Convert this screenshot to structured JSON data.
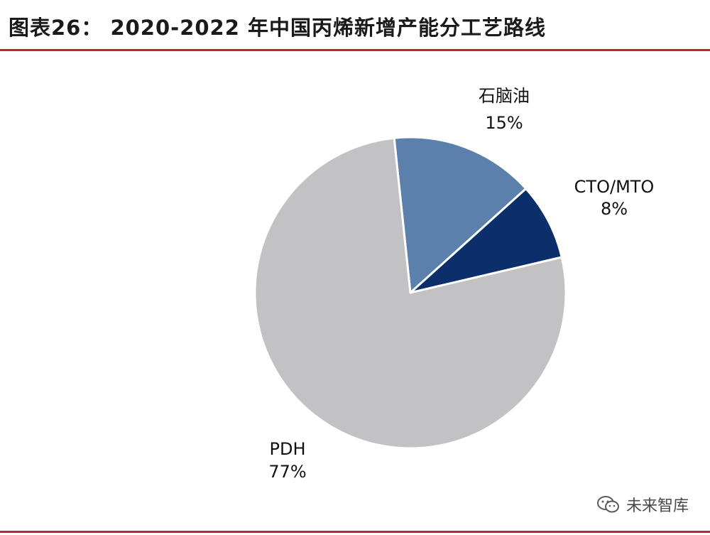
{
  "title": "图表26：   2020-2022 年中国丙烯新增产能分工艺路线",
  "watermark": "未来智库",
  "colors": {
    "accent_rule": "#c0272d"
  },
  "chart_data": {
    "type": "pie",
    "title": "2020-2022 年中国丙烯新增产能分工艺路线",
    "slices": [
      {
        "label": "石脑油",
        "value": 15,
        "display": "15%",
        "color": "#5b80ab"
      },
      {
        "label": "CTO/MTO",
        "value": 8,
        "display": "8%",
        "color": "#0b2f6b"
      },
      {
        "label": "PDH",
        "value": 77,
        "display": "77%",
        "color": "#c2c2c4"
      }
    ]
  }
}
